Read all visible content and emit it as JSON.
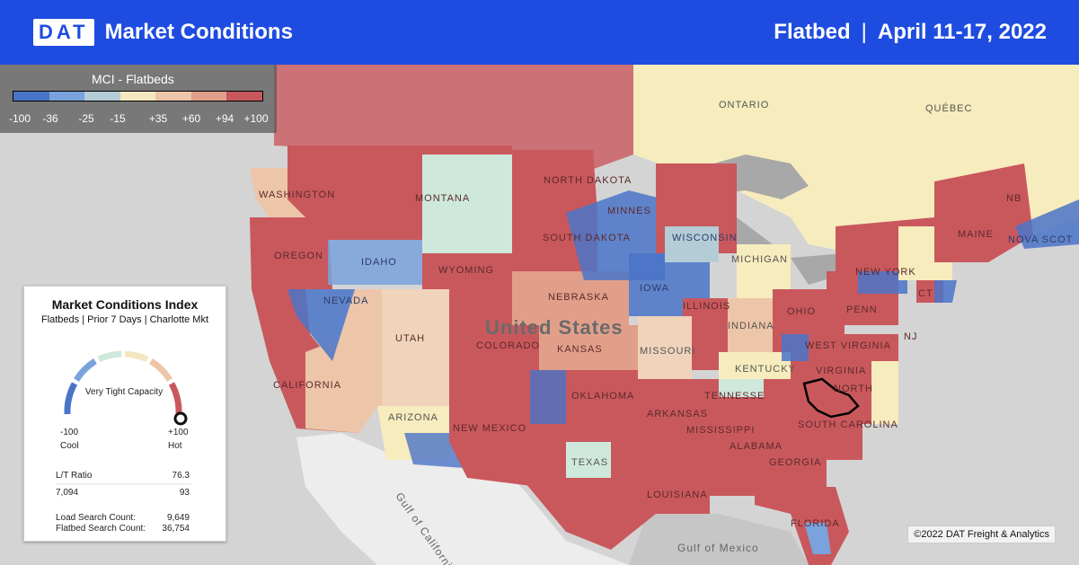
{
  "header": {
    "logo": "DAT",
    "title": "Market Conditions",
    "equipment": "Flatbed",
    "divider": "|",
    "dates": "April 11-17, 2022"
  },
  "legend": {
    "title": "MCI - Flatbeds",
    "ticks": [
      "-100",
      "-36",
      "-25",
      "-15",
      "+35",
      "+60",
      "+94",
      "+100"
    ],
    "colors": [
      "#4a74c8",
      "#7aa2dc",
      "#b4ccd6",
      "#f4e7c0",
      "#edc5a8",
      "#e19f8a",
      "#c9585d"
    ]
  },
  "map_labels": {
    "ontario": "ONTARIO",
    "quebec": "QUÉBEC",
    "washington": "WASHINGTON",
    "montana": "MONTANA",
    "north_dakota": "NORTH DAKOTA",
    "minnesota": "MINNES",
    "oregon": "OREGON",
    "idaho": "IDAHO",
    "south_dakota": "SOUTH DAKOTA",
    "wisconsin": "WISCONSIN",
    "wyoming": "WYOMING",
    "iowa": "IOWA",
    "nebraska": "NEBRASKA",
    "michigan": "MICHIGAN",
    "nevada": "NEVADA",
    "utah": "UTAH",
    "colorado": "COLORADO",
    "united_states": "United States",
    "kansas": "KANSAS",
    "missouri": "MISSOURI",
    "illinois": "ILLINOIS",
    "indiana": "INDIANA",
    "ohio": "OHIO",
    "penn": "PENN",
    "new_york": "NEW YORK",
    "maine": "MAINE",
    "nb": "NB",
    "nova_scotia": "NOVA SCOT",
    "ct": "CT",
    "nj": "NJ",
    "west_virginia": "WEST VIRGINIA",
    "virginia": "VIRGINIA",
    "kentucky": "KENTUCKY",
    "north_carolina": "NORTH",
    "tennessee": "TENNESSE",
    "california": "CALIFORNIA",
    "arizona": "ARIZONA",
    "new_mexico": "NEW MEXICO",
    "oklahoma": "OKLAHOMA",
    "arkansas": "ARKANSAS",
    "mississippi": "MISSISSIPPI",
    "alabama": "ALABAMA",
    "georgia": "GEORGIA",
    "south_carolina": "SOUTH CAROLINA",
    "texas": "TEXAS",
    "louisiana": "LOUISIANA",
    "florida": "FLORIDA",
    "gulf_california": "Gulf of California",
    "gulf_mexico": "Gulf of Mexico"
  },
  "card": {
    "title": "Market Conditions Index",
    "subtitle": "Flatbeds | Prior 7 Days | Charlotte Mkt",
    "status": "Very Tight Capacity",
    "min": "-100",
    "min_label": "Cool",
    "max": "+100",
    "max_label": "Hot",
    "gauge_value": 100,
    "lt_label": "L/T Ratio",
    "lt_value": "76.3",
    "lt_loads": "7,094",
    "lt_trucks": "93",
    "load_search_label": "Load Search Count:",
    "load_search_value": "9,649",
    "flatbed_search_label": "Flatbed Search Count:",
    "flatbed_search_value": "36,754"
  },
  "credit": "©2022 DAT Freight & Analytics"
}
